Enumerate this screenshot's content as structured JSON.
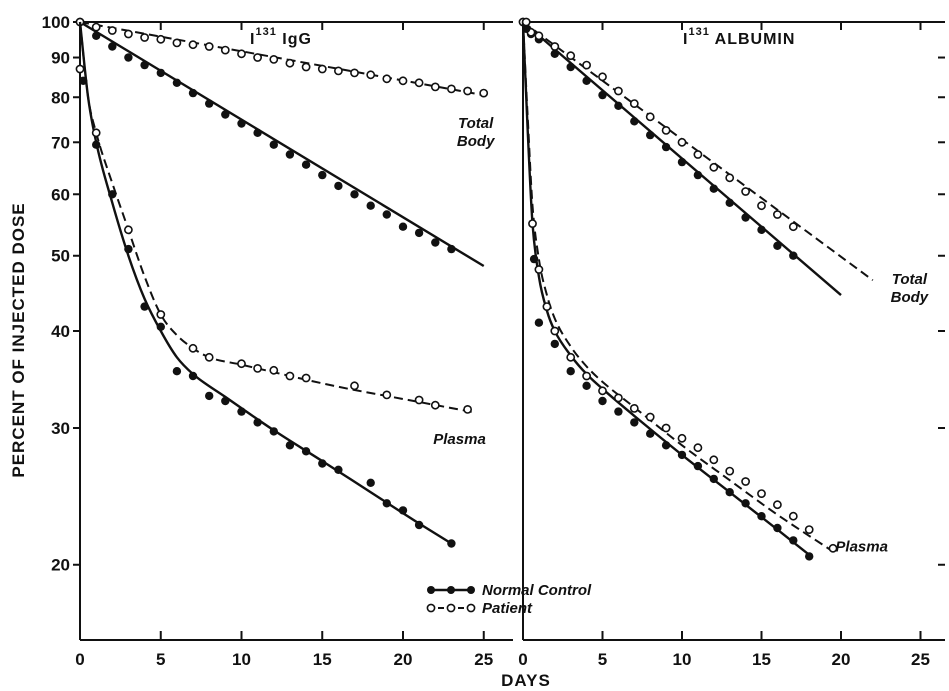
{
  "chart_data": [
    {
      "type": "scatter",
      "title_main": "I",
      "title_sup": "131",
      "title_rest": " IgG",
      "xlabel": "DAYS",
      "ylabel": "PERCENT OF INJECTED DOSE",
      "xlim": [
        0,
        28
      ],
      "ylim": [
        16,
        100
      ],
      "yscale": "log",
      "x_ticks": [
        0,
        5,
        10,
        15,
        20,
        25
      ],
      "x_tick_labels": [
        "0",
        "5",
        "10",
        "15",
        "20",
        "25"
      ],
      "y_ticks": [
        20,
        30,
        40,
        50,
        60,
        70,
        80,
        90,
        100
      ],
      "y_tick_labels": [
        "20",
        "30",
        "40",
        "50",
        "60",
        "70",
        "80",
        "90",
        "100"
      ],
      "annotations": [
        {
          "text_lines": [
            "Total",
            "Body"
          ],
          "x": 24.5,
          "y": 73
        },
        {
          "text_lines": [
            "Plasma"
          ],
          "x": 23.5,
          "y": 28.6
        }
      ],
      "series": [
        {
          "group": "Total Body",
          "subject": "Normal Control",
          "marker": "filled",
          "line": "solid",
          "x": [
            0,
            1,
            2,
            3,
            4,
            5,
            6,
            7,
            8,
            9,
            10,
            11,
            12,
            13,
            14,
            15,
            16,
            17,
            18,
            19,
            20,
            21,
            22,
            23
          ],
          "y": [
            100,
            96,
            93,
            90,
            88,
            86,
            83.5,
            81,
            78.5,
            76,
            74,
            72,
            69.5,
            67.5,
            65.5,
            63.5,
            61.5,
            60,
            58,
            56.5,
            54.5,
            53.5,
            52,
            51
          ],
          "fit_x": [
            0,
            25
          ],
          "fit_y": [
            100,
            48.5
          ]
        },
        {
          "group": "Total Body",
          "subject": "Patient",
          "marker": "open",
          "line": "dashed",
          "x": [
            0,
            1,
            2,
            3,
            4,
            5,
            6,
            7,
            8,
            9,
            10,
            11,
            12,
            13,
            14,
            15,
            16,
            17,
            18,
            19,
            20,
            21,
            22,
            23,
            24,
            25
          ],
          "y": [
            100,
            98.5,
            97.5,
            96.5,
            95.5,
            95,
            94,
            93.5,
            93,
            92,
            91,
            90,
            89.5,
            88.5,
            87.5,
            87,
            86.5,
            86,
            85.5,
            84.5,
            84,
            83.5,
            82.5,
            82,
            81.5,
            81
          ],
          "fit_x": [
            0,
            25
          ],
          "fit_y": [
            100,
            80.5
          ]
        },
        {
          "group": "Plasma",
          "subject": "Normal Control",
          "marker": "filled",
          "line": "solid",
          "x": [
            0.2,
            1,
            2,
            3,
            4,
            5,
            6,
            7,
            8,
            9,
            10,
            11,
            12,
            13,
            14,
            15,
            16,
            18,
            19,
            20,
            21,
            23
          ],
          "y": [
            84,
            69.5,
            60,
            51,
            43,
            40.5,
            35.5,
            35,
            33,
            32.5,
            31.5,
            30.5,
            29.7,
            28.5,
            28,
            27,
            26.5,
            25.5,
            24,
            23.5,
            22.5,
            21.3
          ],
          "fit_x": [
            0,
            0.5,
            1,
            2,
            3,
            4,
            5,
            6,
            7,
            9,
            12,
            15,
            18,
            21,
            23
          ],
          "fit_y": [
            100,
            80,
            70,
            58.5,
            50,
            44,
            40,
            37,
            35.2,
            32.9,
            29.8,
            27.2,
            24.8,
            22.6,
            21.3
          ]
        },
        {
          "group": "Plasma",
          "subject": "Patient",
          "marker": "open",
          "line": "dashed",
          "x": [
            0,
            1,
            3,
            5,
            7,
            8,
            10,
            11,
            12,
            13,
            14,
            17,
            19,
            21,
            22,
            24
          ],
          "y": [
            87,
            72,
            54,
            42,
            38,
            37,
            36.3,
            35.8,
            35.6,
            35,
            34.8,
            34,
            33.1,
            32.6,
            32.1,
            31.7
          ],
          "fit_x": [
            0,
            0.5,
            1,
            2,
            3,
            4,
            5,
            6,
            7,
            8,
            10,
            13,
            16,
            20,
            24.5
          ],
          "fit_y": [
            100,
            80,
            72,
            62,
            54,
            47,
            42,
            39.5,
            38,
            37,
            36.2,
            35,
            33.9,
            32.7,
            31.4
          ]
        }
      ]
    },
    {
      "type": "scatter",
      "title_main": "I",
      "title_sup": "131",
      "title_rest": " ALBUMIN",
      "xlabel": "DAYS",
      "ylabel": "PERCENT OF INJECTED DOSE",
      "xlim": [
        0,
        26
      ],
      "ylim": [
        16,
        100
      ],
      "yscale": "log",
      "x_ticks": [
        0,
        5,
        10,
        15,
        20,
        25
      ],
      "x_tick_labels": [
        "0",
        "5",
        "10",
        "15",
        "20",
        "25"
      ],
      "annotations": [
        {
          "text_lines": [
            "Total",
            "Body"
          ],
          "x": 24.3,
          "y": 46
        },
        {
          "text_lines": [
            "Plasma"
          ],
          "x": 21.3,
          "y": 20.8
        }
      ],
      "series": [
        {
          "group": "Total Body",
          "subject": "Normal Control",
          "marker": "filled",
          "line": "solid",
          "x": [
            0,
            0.5,
            1,
            2,
            3,
            4,
            5,
            6,
            7,
            8,
            9,
            10,
            11,
            12,
            13,
            14,
            15,
            16,
            17
          ],
          "y": [
            100,
            96.5,
            95,
            91,
            87.5,
            84,
            80.5,
            78,
            74.5,
            71.5,
            69,
            66,
            63.5,
            61,
            58.5,
            56,
            54,
            51.5,
            50
          ],
          "fit_x": [
            0,
            20
          ],
          "fit_y": [
            100,
            44.5
          ]
        },
        {
          "group": "Total Body",
          "subject": "Patient",
          "marker": "open",
          "line": "dashed",
          "x": [
            0,
            0.5,
            1,
            2,
            3,
            4,
            5,
            6,
            7,
            8,
            9,
            10,
            11,
            12,
            13,
            14,
            15,
            16,
            17
          ],
          "y": [
            100,
            97,
            96,
            93,
            90.5,
            88,
            85,
            81.5,
            78.5,
            75.5,
            72.5,
            70,
            67.5,
            65,
            63,
            60.5,
            58,
            56.5,
            54.5
          ],
          "fit_x": [
            0,
            22
          ],
          "fit_y": [
            100,
            46.5
          ]
        },
        {
          "group": "Plasma",
          "subject": "Normal Control",
          "marker": "filled",
          "line": "solid",
          "x": [
            0.2,
            0.7,
            1,
            2,
            3,
            4,
            5,
            6,
            7,
            8,
            9,
            10,
            11,
            12,
            13,
            14,
            15,
            16,
            17,
            18
          ],
          "y": [
            98,
            49.5,
            41,
            38.5,
            35.5,
            34,
            32.5,
            31.5,
            30.5,
            29.5,
            28.5,
            27.7,
            26.8,
            25.8,
            24.8,
            24,
            23.1,
            22.3,
            21.5,
            20.5
          ],
          "fit_x": [
            0,
            0.3,
            0.6,
            1,
            1.5,
            2,
            3,
            4,
            5,
            7,
            10,
            13,
            16,
            18
          ],
          "fit_y": [
            100,
            72,
            55,
            47,
            42.5,
            40,
            37.2,
            35.2,
            33.7,
            31.1,
            27.7,
            24.8,
            22.2,
            20.6
          ]
        },
        {
          "group": "Plasma",
          "subject": "Patient",
          "marker": "open",
          "line": "dashed",
          "x": [
            0.2,
            0.6,
            1,
            1.5,
            2,
            3,
            4,
            5,
            6,
            7,
            8,
            9,
            10,
            11,
            12,
            13,
            14,
            15,
            16,
            17,
            18,
            19.5
          ],
          "y": [
            100,
            55,
            48,
            43,
            40,
            37,
            35,
            33.5,
            32.8,
            31.8,
            31,
            30,
            29.1,
            28.3,
            27.3,
            26.4,
            25.6,
            24.7,
            23.9,
            23.1,
            22.2,
            21
          ],
          "fit_x": [
            0,
            0.3,
            0.6,
            1,
            1.5,
            2,
            3,
            4,
            5,
            7,
            10,
            13,
            16,
            19.5
          ],
          "fit_y": [
            100,
            75,
            58,
            49.5,
            44.5,
            41.5,
            38.2,
            36,
            34.4,
            31.9,
            28.5,
            25.7,
            23.2,
            20.8
          ]
        }
      ]
    }
  ],
  "legend": {
    "placement": "bottom-center",
    "items": [
      {
        "label": "Normal Control",
        "marker": "filled",
        "line": "solid"
      },
      {
        "label": "Patient",
        "marker": "open",
        "line": "dashed"
      }
    ]
  }
}
